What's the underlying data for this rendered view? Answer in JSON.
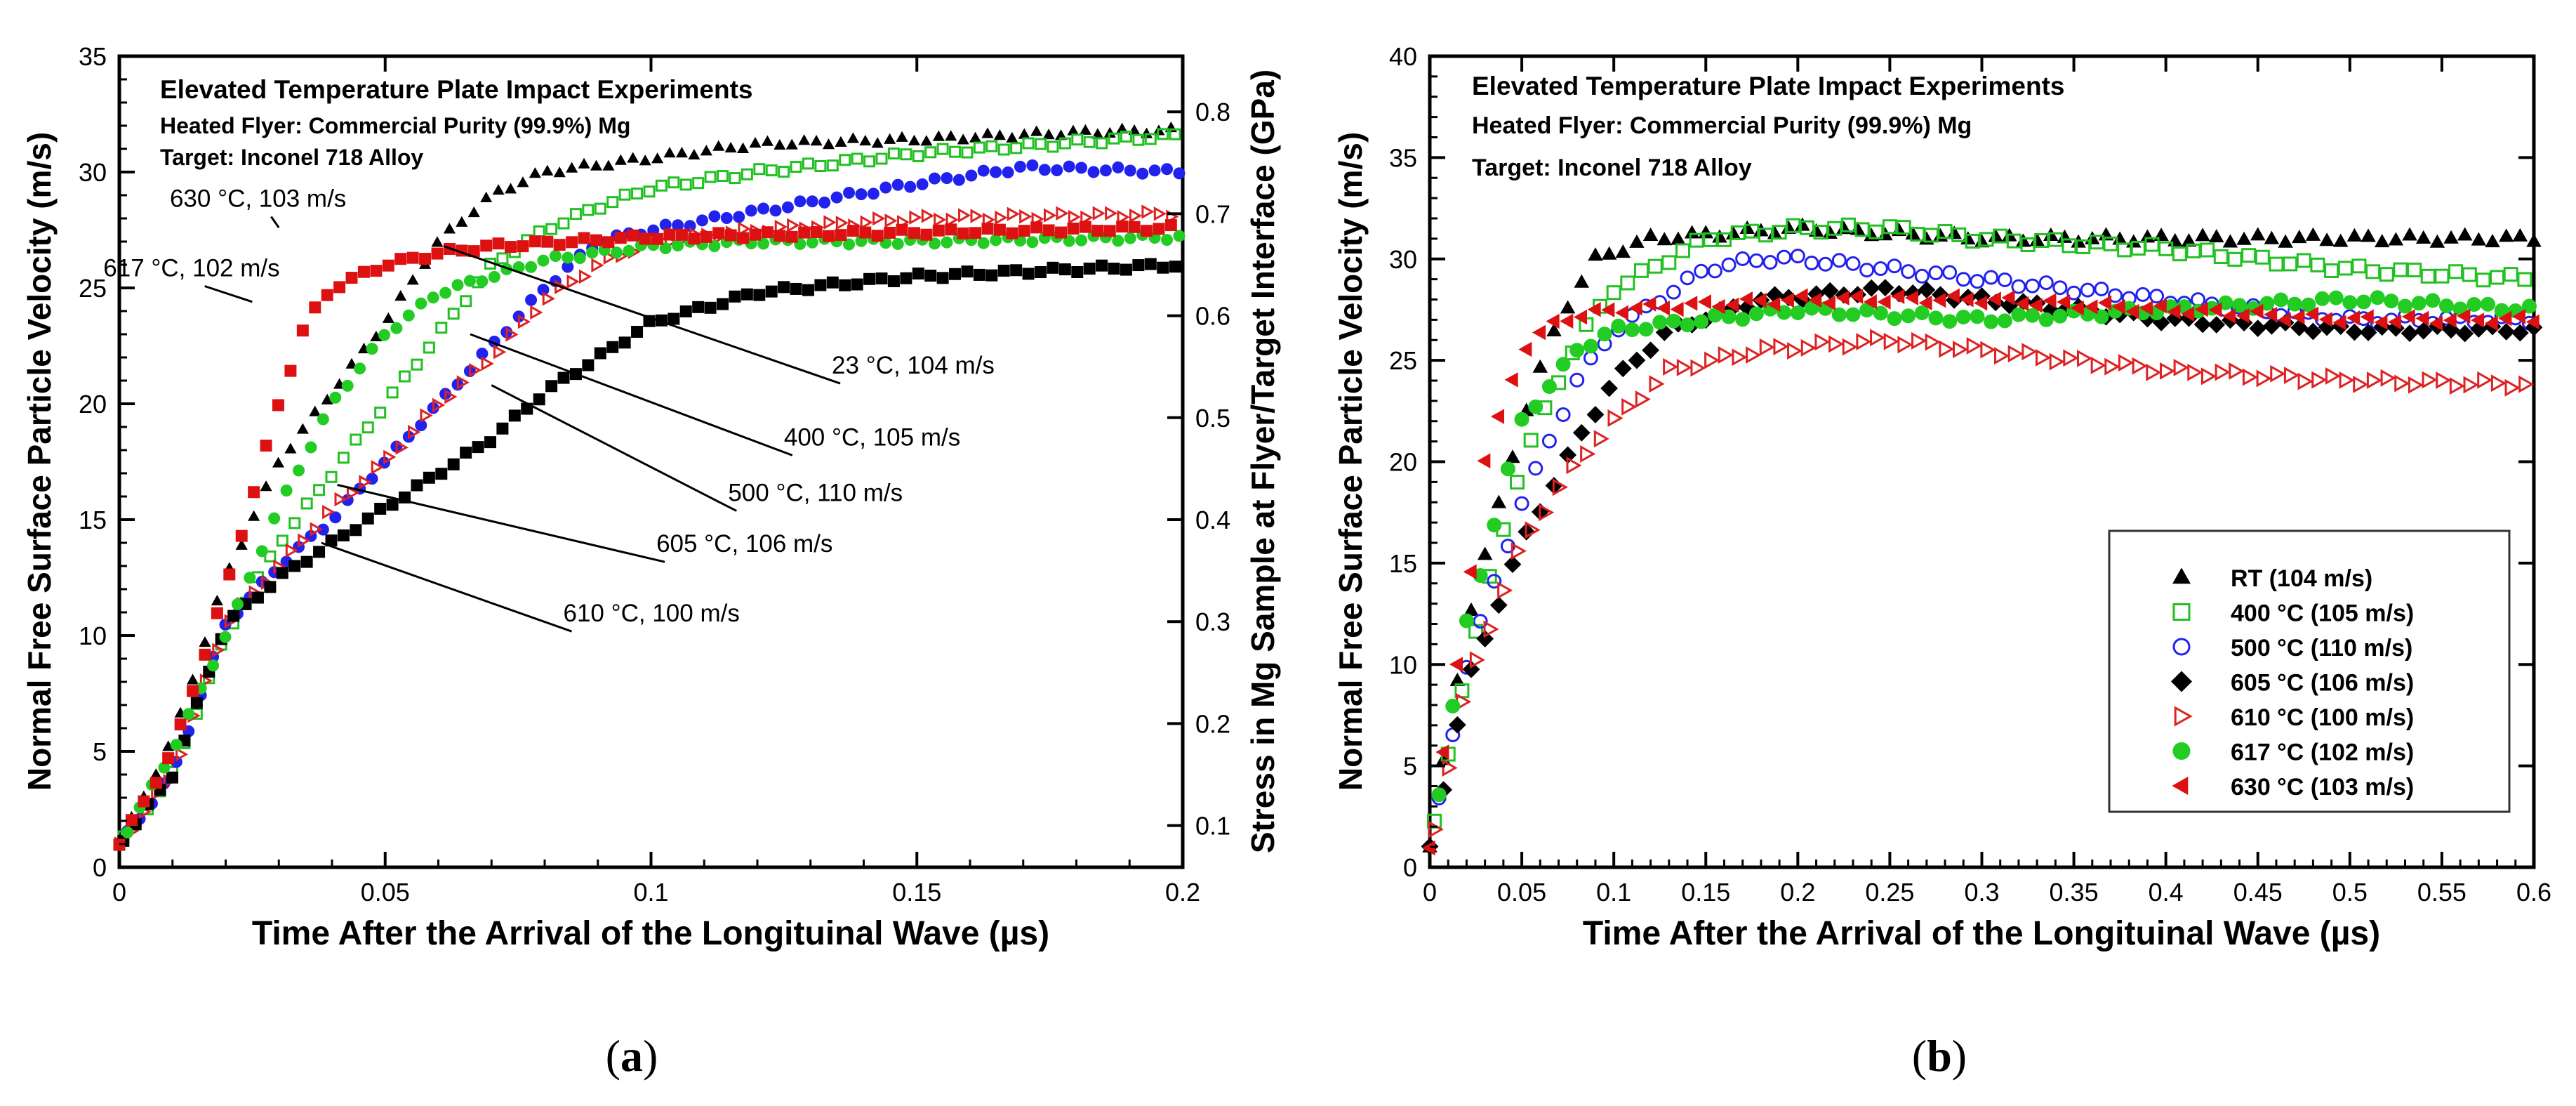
{
  "chart_data": [
    {
      "type": "scatter",
      "panel": "a",
      "caption_open": "(",
      "caption_letter": "a",
      "caption_close": ")",
      "title_lines": [
        "Elevated Temperature Plate Impact Experiments",
        "Heated Flyer: Commercial Purity (99.9%) Mg",
        "Target: Inconel 718 Alloy"
      ],
      "xlabel": "Time After the Arrival of the Longituinal Wave (µs)",
      "ylabel": "Normal Free Surface Particle Velocity (m/s)",
      "y2label": "Stress in Mg Sample at Flyer/Target Interface (GPa)",
      "xlim": [
        0,
        0.2
      ],
      "ylim": [
        0,
        35
      ],
      "xticks": [
        "0",
        "0.05",
        "0.1",
        "0.15",
        "0.2"
      ],
      "yticks": [
        "0",
        "5",
        "10",
        "15",
        "20",
        "25",
        "30",
        "35"
      ],
      "y2ticks": [
        "0.1",
        "0.2",
        "0.3",
        "0.4",
        "0.5",
        "0.6",
        "0.7",
        "0.8"
      ],
      "y2_tick_y_values": [
        1.8,
        6.2,
        10.6,
        15.0,
        19.4,
        23.8,
        28.2,
        32.6
      ],
      "series": [
        {
          "name": "23 °C, 104 m/s",
          "marker": "triangle-up",
          "fill": "#000000",
          "stroke": "#000000",
          "points": [
            [
              0,
              1.0
            ],
            [
              0.01,
              5.5
            ],
            [
              0.02,
              12.5
            ],
            [
              0.03,
              17.5
            ],
            [
              0.04,
              20.5
            ],
            [
              0.05,
              23.5
            ],
            [
              0.06,
              27
            ],
            [
              0.07,
              29
            ],
            [
              0.08,
              30
            ],
            [
              0.1,
              30.6
            ],
            [
              0.12,
              31.2
            ],
            [
              0.15,
              31.4
            ],
            [
              0.18,
              31.7
            ],
            [
              0.2,
              31.8
            ]
          ]
        },
        {
          "name": "400 °C, 105 m/s",
          "marker": "square-open",
          "fill": "none",
          "stroke": "#22c022",
          "points": [
            [
              0,
              1.0
            ],
            [
              0.01,
              4
            ],
            [
              0.02,
              10
            ],
            [
              0.03,
              14
            ],
            [
              0.04,
              17
            ],
            [
              0.05,
              20
            ],
            [
              0.06,
              23
            ],
            [
              0.07,
              26
            ],
            [
              0.08,
              27.5
            ],
            [
              0.09,
              28.5
            ],
            [
              0.1,
              29.3
            ],
            [
              0.12,
              30
            ],
            [
              0.15,
              30.8
            ],
            [
              0.2,
              31.6
            ]
          ]
        },
        {
          "name": "500 °C, 110 m/s",
          "marker": "circle",
          "fill": "#2222ee",
          "stroke": "#2222ee",
          "points": [
            [
              0,
              1.0
            ],
            [
              0.01,
              4
            ],
            [
              0.02,
              10.5
            ],
            [
              0.03,
              13
            ],
            [
              0.04,
              15
            ],
            [
              0.05,
              17.5
            ],
            [
              0.06,
              20
            ],
            [
              0.07,
              22.5
            ],
            [
              0.08,
              25
            ],
            [
              0.09,
              27
            ],
            [
              0.1,
              27.5
            ],
            [
              0.12,
              28.3
            ],
            [
              0.15,
              29.5
            ],
            [
              0.17,
              30.2
            ],
            [
              0.2,
              30
            ]
          ]
        },
        {
          "name": "605 °C, 106 m/s",
          "marker": "triangle-right-open",
          "fill": "none",
          "stroke": "#dd2222",
          "points": [
            [
              0,
              1.0
            ],
            [
              0.01,
              4
            ],
            [
              0.02,
              10.5
            ],
            [
              0.03,
              13
            ],
            [
              0.04,
              15.5
            ],
            [
              0.05,
              17.5
            ],
            [
              0.06,
              20
            ],
            [
              0.07,
              22
            ],
            [
              0.08,
              24.5
            ],
            [
              0.09,
              26
            ],
            [
              0.1,
              27
            ],
            [
              0.12,
              27.5
            ],
            [
              0.15,
              28
            ],
            [
              0.2,
              28.2
            ]
          ]
        },
        {
          "name": "610 °C, 100 m/s",
          "marker": "square",
          "fill": "#000000",
          "stroke": "#000000",
          "points": [
            [
              0,
              1.0
            ],
            [
              0.01,
              4
            ],
            [
              0.02,
              10.5
            ],
            [
              0.03,
              12.5
            ],
            [
              0.04,
              14
            ],
            [
              0.05,
              15.5
            ],
            [
              0.06,
              17
            ],
            [
              0.07,
              18.5
            ],
            [
              0.08,
              20.5
            ],
            [
              0.09,
              22
            ],
            [
              0.1,
              23.5
            ],
            [
              0.12,
              24.8
            ],
            [
              0.15,
              25.5
            ],
            [
              0.2,
              26
            ]
          ]
        },
        {
          "name": "617 °C, 102 m/s",
          "marker": "circle",
          "fill": "#22cc22",
          "stroke": "#22cc22",
          "points": [
            [
              0,
              1.0
            ],
            [
              0.01,
              5
            ],
            [
              0.02,
              10
            ],
            [
              0.03,
              15.5
            ],
            [
              0.04,
              20
            ],
            [
              0.05,
              23
            ],
            [
              0.06,
              24.8
            ],
            [
              0.07,
              25.5
            ],
            [
              0.08,
              26.2
            ],
            [
              0.09,
              26.5
            ],
            [
              0.1,
              26.8
            ],
            [
              0.12,
              27
            ],
            [
              0.15,
              27
            ],
            [
              0.2,
              27.2
            ]
          ]
        },
        {
          "name": "630 °C, 103 m/s",
          "marker": "square",
          "fill": "#dd1111",
          "stroke": "#dd1111",
          "points": [
            [
              0,
              1.0
            ],
            [
              0.01,
              5
            ],
            [
              0.02,
              12
            ],
            [
              0.03,
              20
            ],
            [
              0.035,
              23.5
            ],
            [
              0.04,
              25
            ],
            [
              0.05,
              26
            ],
            [
              0.06,
              26.5
            ],
            [
              0.07,
              26.8
            ],
            [
              0.1,
              27.2
            ],
            [
              0.15,
              27.4
            ],
            [
              0.2,
              27.6
            ]
          ]
        }
      ],
      "annotations": [
        {
          "text": "630 °C, 103 m/s",
          "x": 0.0095,
          "y": 28.5,
          "ax": 0.03,
          "ay": 27.6
        },
        {
          "text": "617 °C, 102 m/s",
          "x": -0.003,
          "y": 25.5,
          "ax": 0.025,
          "ay": 24.4
        },
        {
          "text": "23 °C, 104 m/s",
          "x": 0.134,
          "y": 21.3,
          "ax": 0.061,
          "ay": 26.8
        },
        {
          "text": "400 °C, 105 m/s",
          "x": 0.125,
          "y": 18.2,
          "ax": 0.066,
          "ay": 23.0
        },
        {
          "text": "500 °C, 110 m/s",
          "x": 0.1145,
          "y": 15.8,
          "ax": 0.07,
          "ay": 20.8
        },
        {
          "text": "605 °C, 106 m/s",
          "x": 0.101,
          "y": 13.6,
          "ax": 0.041,
          "ay": 16.5
        },
        {
          "text": "610 °C, 100 m/s",
          "x": 0.0835,
          "y": 10.6,
          "ax": 0.038,
          "ay": 14.0
        }
      ]
    },
    {
      "type": "scatter",
      "panel": "b",
      "caption_open": "(",
      "caption_letter": "b",
      "caption_close": ")",
      "title_lines": [
        "Elevated Temperature Plate Impact Experiments",
        "Heated Flyer: Commercial Purity (99.9%) Mg",
        "Target: Inconel 718 Alloy"
      ],
      "xlabel": "Time After the Arrival of the Longituinal Wave (µs)",
      "ylabel": "Normal Free Surface Particle Velocity (m/s)",
      "xlim": [
        0,
        0.6
      ],
      "ylim": [
        0,
        40
      ],
      "xticks": [
        "0",
        "0.05",
        "0.1",
        "0.15",
        "0.2",
        "0.25",
        "0.3",
        "0.35",
        "0.4",
        "0.45",
        "0.5",
        "0.55",
        "0.6"
      ],
      "yticks": [
        "0",
        "5",
        "10",
        "15",
        "20",
        "25",
        "30",
        "35",
        "40"
      ],
      "legend_position": "lower-right",
      "series": [
        {
          "name": "RT (104 m/s)",
          "marker": "triangle-up",
          "fill": "#000000",
          "stroke": "#000000",
          "points": [
            [
              0,
              1
            ],
            [
              0.02,
              12
            ],
            [
              0.05,
              22
            ],
            [
              0.07,
              27
            ],
            [
              0.09,
              30
            ],
            [
              0.12,
              31
            ],
            [
              0.2,
              31.5
            ],
            [
              0.3,
              31
            ],
            [
              0.4,
              31
            ],
            [
              0.5,
              31
            ],
            [
              0.6,
              31
            ]
          ]
        },
        {
          "name": "400 °C (105 m/s)",
          "marker": "square-open",
          "fill": "none",
          "stroke": "#22c022",
          "points": [
            [
              0,
              1
            ],
            [
              0.02,
              10
            ],
            [
              0.05,
              20
            ],
            [
              0.08,
              26
            ],
            [
              0.1,
              28.5
            ],
            [
              0.15,
              31
            ],
            [
              0.2,
              31.5
            ],
            [
              0.25,
              31.5
            ],
            [
              0.3,
              31
            ],
            [
              0.4,
              30.5
            ],
            [
              0.5,
              29.5
            ],
            [
              0.6,
              29
            ]
          ]
        },
        {
          "name": "500 °C (110 m/s)",
          "marker": "circle-open",
          "fill": "none",
          "stroke": "#2222ee",
          "points": [
            [
              0,
              1
            ],
            [
              0.02,
              10
            ],
            [
              0.05,
              18
            ],
            [
              0.08,
              24
            ],
            [
              0.1,
              26.5
            ],
            [
              0.15,
              29.5
            ],
            [
              0.18,
              30
            ],
            [
              0.2,
              30
            ],
            [
              0.25,
              29.5
            ],
            [
              0.3,
              29
            ],
            [
              0.4,
              28
            ],
            [
              0.5,
              27
            ],
            [
              0.6,
              27
            ]
          ]
        },
        {
          "name": "605 °C (106 m/s)",
          "marker": "diamond",
          "fill": "#000000",
          "stroke": "#000000",
          "points": [
            [
              0,
              1
            ],
            [
              0.02,
              9
            ],
            [
              0.05,
              16
            ],
            [
              0.08,
              21
            ],
            [
              0.1,
              24
            ],
            [
              0.13,
              26.5
            ],
            [
              0.18,
              28
            ],
            [
              0.25,
              28.5
            ],
            [
              0.3,
              28
            ],
            [
              0.4,
              27
            ],
            [
              0.5,
              26.5
            ],
            [
              0.6,
              26.5
            ]
          ]
        },
        {
          "name": "610 °C (100 m/s)",
          "marker": "triangle-right-open",
          "fill": "none",
          "stroke": "#dd2222",
          "points": [
            [
              0,
              1
            ],
            [
              0.02,
              9
            ],
            [
              0.05,
              16
            ],
            [
              0.08,
              20
            ],
            [
              0.1,
              22
            ],
            [
              0.13,
              24.5
            ],
            [
              0.18,
              25.5
            ],
            [
              0.25,
              26
            ],
            [
              0.3,
              25.5
            ],
            [
              0.35,
              25
            ],
            [
              0.4,
              24.5
            ],
            [
              0.5,
              24
            ],
            [
              0.6,
              23.8
            ]
          ]
        },
        {
          "name": "617 °C (102 m/s)",
          "marker": "circle",
          "fill": "#22cc22",
          "stroke": "#22cc22",
          "points": [
            [
              0,
              1
            ],
            [
              0.02,
              12
            ],
            [
              0.05,
              22
            ],
            [
              0.08,
              25.5
            ],
            [
              0.1,
              26.5
            ],
            [
              0.15,
              27
            ],
            [
              0.2,
              27.5
            ],
            [
              0.3,
              27
            ],
            [
              0.4,
              27.5
            ],
            [
              0.5,
              28
            ],
            [
              0.6,
              27.5
            ]
          ]
        },
        {
          "name": "630 °C (103 m/s)",
          "marker": "triangle-left",
          "fill": "#dd1111",
          "stroke": "#dd1111",
          "points": [
            [
              0,
              1
            ],
            [
              0.02,
              13
            ],
            [
              0.03,
              20
            ],
            [
              0.05,
              25.5
            ],
            [
              0.07,
              27
            ],
            [
              0.1,
              27.5
            ],
            [
              0.2,
              28
            ],
            [
              0.3,
              28
            ],
            [
              0.4,
              27.5
            ],
            [
              0.5,
              27
            ],
            [
              0.6,
              27
            ]
          ]
        }
      ]
    }
  ]
}
